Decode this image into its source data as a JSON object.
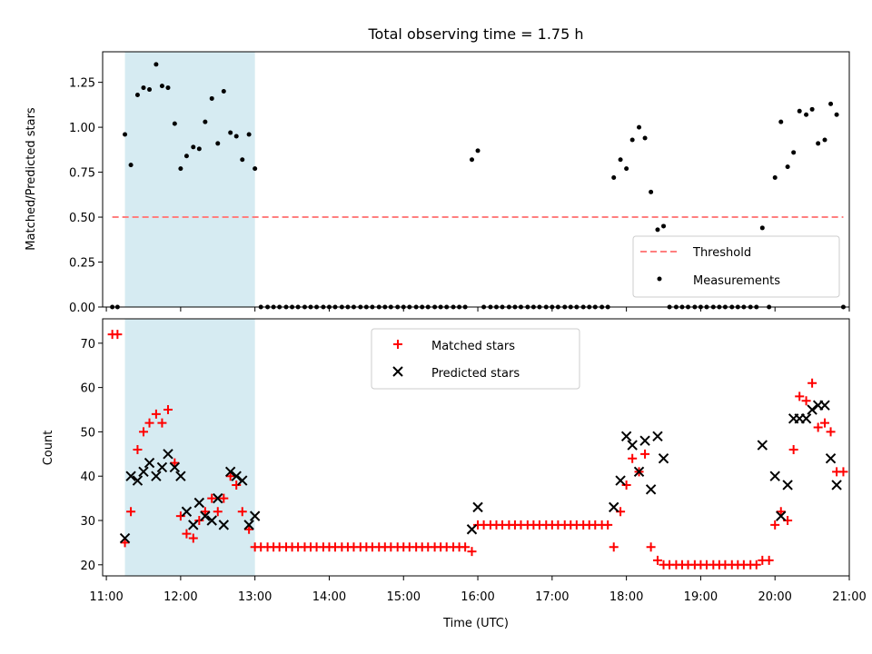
{
  "title": "Total observing time = 1.75 h",
  "colors": {
    "threshold": "#ff7f7f",
    "shade": "#add8e6",
    "matched": "#ff0000",
    "predicted": "#000000",
    "points": "#000000"
  },
  "chart_data": [
    {
      "type": "scatter",
      "panel": "top",
      "ylabel": "Matched/Predicted stars",
      "xlim": [
        10.95,
        21.0
      ],
      "ylim": [
        0.0,
        1.42
      ],
      "yticks": [
        0.0,
        0.25,
        0.5,
        0.75,
        1.0,
        1.25
      ],
      "ytick_labels": [
        "0.00",
        "0.25",
        "0.50",
        "0.75",
        "1.00",
        "1.25"
      ],
      "shaded_region": [
        11.25,
        13.0
      ],
      "threshold": {
        "name": "Threshold",
        "value": 0.5,
        "x_range": [
          11.08,
          20.92
        ]
      },
      "legend": [
        "Threshold",
        "Measurements"
      ],
      "legend_loc": "lower right",
      "series": [
        {
          "name": "Measurements",
          "x": [
            11.08,
            11.15,
            11.25,
            11.33,
            11.42,
            11.5,
            11.58,
            11.67,
            11.75,
            11.83,
            11.92,
            12.0,
            12.08,
            12.17,
            12.25,
            12.33,
            12.42,
            12.5,
            12.58,
            12.67,
            12.75,
            12.83,
            12.92,
            13.0,
            13.08,
            13.17,
            13.25,
            13.33,
            13.42,
            13.5,
            13.58,
            13.67,
            13.75,
            13.83,
            13.92,
            14.0,
            14.08,
            14.17,
            14.25,
            14.33,
            14.42,
            14.5,
            14.58,
            14.67,
            14.75,
            14.83,
            14.92,
            15.0,
            15.08,
            15.17,
            15.25,
            15.33,
            15.42,
            15.5,
            15.58,
            15.67,
            15.75,
            15.83,
            15.92,
            16.0,
            16.08,
            16.17,
            16.25,
            16.33,
            16.42,
            16.5,
            16.58,
            16.67,
            16.75,
            16.83,
            16.92,
            17.0,
            17.08,
            17.17,
            17.25,
            17.33,
            17.42,
            17.5,
            17.58,
            17.67,
            17.75,
            17.83,
            17.92,
            18.0,
            18.08,
            18.17,
            18.25,
            18.33,
            18.42,
            18.5,
            18.58,
            18.67,
            18.75,
            18.83,
            18.92,
            19.0,
            19.08,
            19.17,
            19.25,
            19.33,
            19.42,
            19.5,
            19.58,
            19.67,
            19.75,
            19.83,
            19.92,
            20.0,
            20.08,
            20.17,
            20.25,
            20.33,
            20.42,
            20.5,
            20.58,
            20.67,
            20.75,
            20.83,
            20.92
          ],
          "y": [
            0.0,
            0.0,
            0.96,
            0.79,
            1.18,
            1.22,
            1.21,
            1.35,
            1.23,
            1.22,
            1.02,
            0.77,
            0.84,
            0.89,
            0.88,
            1.03,
            1.16,
            0.91,
            1.2,
            0.97,
            0.95,
            0.82,
            0.96,
            0.77,
            0.0,
            0.0,
            0.0,
            0.0,
            0.0,
            0.0,
            0.0,
            0.0,
            0.0,
            0.0,
            0.0,
            0.0,
            0.0,
            0.0,
            0.0,
            0.0,
            0.0,
            0.0,
            0.0,
            0.0,
            0.0,
            0.0,
            0.0,
            0.0,
            0.0,
            0.0,
            0.0,
            0.0,
            0.0,
            0.0,
            0.0,
            0.0,
            0.0,
            0.0,
            0.82,
            0.87,
            0.0,
            0.0,
            0.0,
            0.0,
            0.0,
            0.0,
            0.0,
            0.0,
            0.0,
            0.0,
            0.0,
            0.0,
            0.0,
            0.0,
            0.0,
            0.0,
            0.0,
            0.0,
            0.0,
            0.0,
            0.0,
            0.72,
            0.82,
            0.77,
            0.93,
            1.0,
            0.94,
            0.64,
            0.43,
            0.45,
            0.0,
            0.0,
            0.0,
            0.0,
            0.0,
            0.0,
            0.0,
            0.0,
            0.0,
            0.0,
            0.0,
            0.0,
            0.0,
            0.0,
            0.0,
            0.44,
            0.0,
            0.72,
            1.03,
            0.78,
            0.86,
            1.09,
            1.07,
            1.1,
            0.91,
            0.93,
            1.13,
            1.07,
            0.0
          ]
        }
      ]
    },
    {
      "type": "scatter",
      "panel": "bottom",
      "xlabel": "Time (UTC)",
      "ylabel": "Count",
      "xlim": [
        10.95,
        21.0
      ],
      "ylim": [
        17.5,
        75.5
      ],
      "xticks": [
        11,
        12,
        13,
        14,
        15,
        16,
        17,
        18,
        19,
        20,
        21
      ],
      "xtick_labels": [
        "11:00",
        "12:00",
        "13:00",
        "14:00",
        "15:00",
        "16:00",
        "17:00",
        "18:00",
        "19:00",
        "20:00",
        "21:00"
      ],
      "yticks": [
        20,
        30,
        40,
        50,
        60,
        70
      ],
      "ytick_labels": [
        "20",
        "30",
        "40",
        "50",
        "60",
        "70"
      ],
      "shaded_region": [
        11.25,
        13.0
      ],
      "legend": [
        "Matched stars",
        "Predicted stars"
      ],
      "legend_loc": "upper center",
      "series": [
        {
          "name": "Matched stars",
          "marker": "+",
          "x": [
            11.08,
            11.15,
            11.25,
            11.33,
            11.42,
            11.5,
            11.58,
            11.67,
            11.75,
            11.83,
            11.92,
            12.0,
            12.08,
            12.17,
            12.25,
            12.33,
            12.42,
            12.5,
            12.58,
            12.67,
            12.75,
            12.83,
            12.92,
            13.0,
            13.08,
            13.17,
            13.25,
            13.33,
            13.42,
            13.5,
            13.58,
            13.67,
            13.75,
            13.83,
            13.92,
            14.0,
            14.08,
            14.17,
            14.25,
            14.33,
            14.42,
            14.5,
            14.58,
            14.67,
            14.75,
            14.83,
            14.92,
            15.0,
            15.08,
            15.17,
            15.25,
            15.33,
            15.42,
            15.5,
            15.58,
            15.67,
            15.75,
            15.83,
            15.92,
            16.0,
            16.08,
            16.17,
            16.25,
            16.33,
            16.42,
            16.5,
            16.58,
            16.67,
            16.75,
            16.83,
            16.92,
            17.0,
            17.08,
            17.17,
            17.25,
            17.33,
            17.42,
            17.5,
            17.58,
            17.67,
            17.75,
            17.83,
            17.92,
            18.0,
            18.08,
            18.17,
            18.25,
            18.33,
            18.42,
            18.5,
            18.58,
            18.67,
            18.75,
            18.83,
            18.92,
            19.0,
            19.08,
            19.17,
            19.25,
            19.33,
            19.42,
            19.5,
            19.58,
            19.67,
            19.75,
            19.83,
            19.92,
            20.0,
            20.08,
            20.17,
            20.25,
            20.33,
            20.42,
            20.5,
            20.58,
            20.67,
            20.75,
            20.83,
            20.92
          ],
          "y": [
            72,
            72,
            25,
            32,
            46,
            50,
            52,
            54,
            52,
            55,
            43,
            31,
            27,
            26,
            30,
            32,
            35,
            32,
            35,
            40,
            38,
            32,
            28,
            24,
            24,
            24,
            24,
            24,
            24,
            24,
            24,
            24,
            24,
            24,
            24,
            24,
            24,
            24,
            24,
            24,
            24,
            24,
            24,
            24,
            24,
            24,
            24,
            24,
            24,
            24,
            24,
            24,
            24,
            24,
            24,
            24,
            24,
            24,
            23,
            29,
            29,
            29,
            29,
            29,
            29,
            29,
            29,
            29,
            29,
            29,
            29,
            29,
            29,
            29,
            29,
            29,
            29,
            29,
            29,
            29,
            29,
            24,
            32,
            38,
            44,
            41,
            45,
            24,
            21,
            20,
            20,
            20,
            20,
            20,
            20,
            20,
            20,
            20,
            20,
            20,
            20,
            20,
            20,
            20,
            20,
            21,
            21,
            29,
            32,
            30,
            46,
            58,
            57,
            61,
            51,
            52,
            50,
            41,
            41
          ]
        },
        {
          "name": "Predicted stars",
          "marker": "x",
          "x": [
            11.25,
            11.33,
            11.42,
            11.5,
            11.58,
            11.67,
            11.75,
            11.83,
            11.92,
            12.0,
            12.08,
            12.17,
            12.25,
            12.33,
            12.42,
            12.5,
            12.58,
            12.67,
            12.75,
            12.83,
            12.92,
            13.0,
            15.92,
            16.0,
            17.83,
            17.92,
            18.0,
            18.08,
            18.17,
            18.25,
            18.33,
            18.42,
            18.5,
            19.83,
            20.0,
            20.08,
            20.17,
            20.25,
            20.33,
            20.42,
            20.5,
            20.58,
            20.67,
            20.75,
            20.83
          ],
          "y": [
            26,
            40,
            39,
            41,
            43,
            40,
            42,
            45,
            42,
            40,
            32,
            29,
            34,
            31,
            30,
            35,
            29,
            41,
            40,
            39,
            29,
            31,
            28,
            33,
            33,
            39,
            49,
            47,
            41,
            48,
            37,
            49,
            44,
            47,
            40,
            31,
            38,
            53,
            53,
            53,
            55,
            56,
            56,
            44,
            38
          ]
        }
      ]
    }
  ]
}
